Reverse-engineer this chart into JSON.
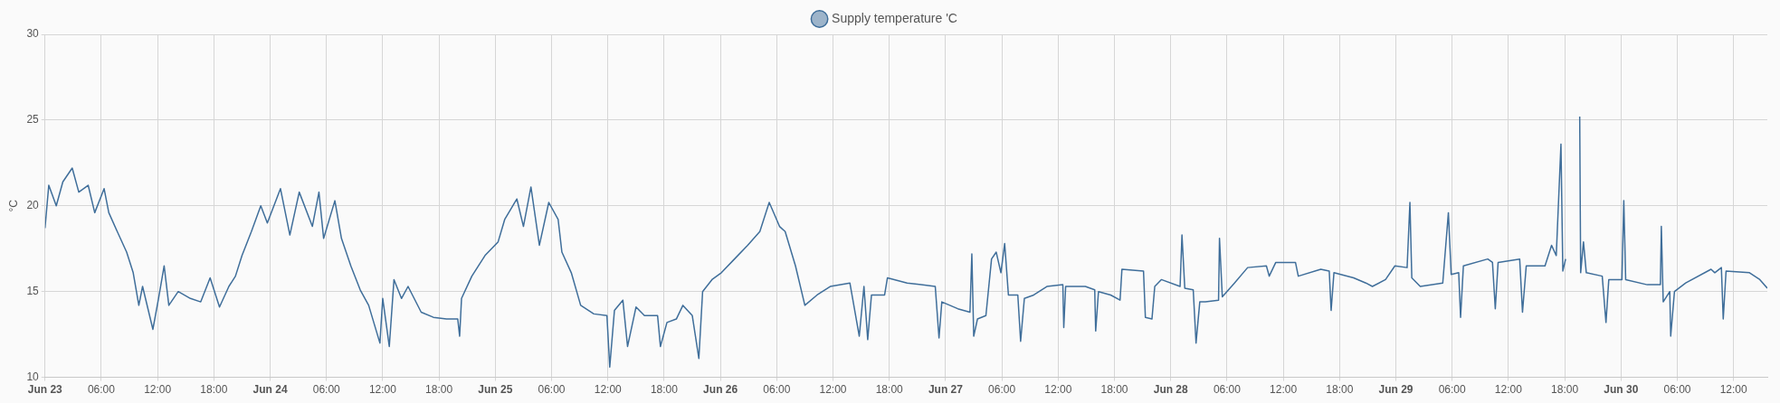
{
  "chart_data": {
    "type": "line",
    "ylabel": "°C",
    "legend": "top",
    "grid": true,
    "marker": "none",
    "line_style": "solid",
    "xlim": [
      "--06-23T00:00",
      "--06-30T15:36"
    ],
    "ylim": [
      10,
      30
    ],
    "yticks": [
      10,
      15,
      20,
      25,
      30
    ],
    "xticks": [
      {
        "value": "--06-23T00:00",
        "label": "Jun 23"
      },
      {
        "value": "--06-23T06:00",
        "label": "06:00"
      },
      {
        "value": "--06-23T12:00",
        "label": "12:00"
      },
      {
        "value": "--06-23T18:00",
        "label": "18:00"
      },
      {
        "value": "--06-24T00:00",
        "label": "Jun 24"
      },
      {
        "value": "--06-24T06:00",
        "label": "06:00"
      },
      {
        "value": "--06-24T12:00",
        "label": "12:00"
      },
      {
        "value": "--06-24T18:00",
        "label": "18:00"
      },
      {
        "value": "--06-25T00:00",
        "label": "Jun 25"
      },
      {
        "value": "--06-25T06:00",
        "label": "06:00"
      },
      {
        "value": "--06-25T12:00",
        "label": "12:00"
      },
      {
        "value": "--06-25T18:00",
        "label": "18:00"
      },
      {
        "value": "--06-26T00:00",
        "label": "Jun 26"
      },
      {
        "value": "--06-26T06:00",
        "label": "06:00"
      },
      {
        "value": "--06-26T12:00",
        "label": "12:00"
      },
      {
        "value": "--06-26T18:00",
        "label": "18:00"
      },
      {
        "value": "--06-27T00:00",
        "label": "Jun 27"
      },
      {
        "value": "--06-27T06:00",
        "label": "06:00"
      },
      {
        "value": "--06-27T12:00",
        "label": "12:00"
      },
      {
        "value": "--06-27T18:00",
        "label": "18:00"
      },
      {
        "value": "--06-28T00:00",
        "label": "Jun 28"
      },
      {
        "value": "--06-28T06:00",
        "label": "06:00"
      },
      {
        "value": "--06-28T12:00",
        "label": "12:00"
      },
      {
        "value": "--06-28T18:00",
        "label": "18:00"
      },
      {
        "value": "--06-29T00:00",
        "label": "Jun 29"
      },
      {
        "value": "--06-29T06:00",
        "label": "06:00"
      },
      {
        "value": "--06-29T12:00",
        "label": "12:00"
      },
      {
        "value": "--06-29T18:00",
        "label": "18:00"
      },
      {
        "value": "--06-30T00:00",
        "label": "Jun 30"
      },
      {
        "value": "--06-30T06:00",
        "label": "06:00"
      },
      {
        "value": "--06-30T12:00",
        "label": "12:00"
      }
    ],
    "series": [
      {
        "name": "Supply temperature 'C",
        "color": "#3f6e9a",
        "x": [
          "--06-23T00:00",
          "--06-23T00:24",
          "--06-23T01:12",
          "--06-23T01:54",
          "--06-23T02:54",
          "--06-23T03:36",
          "--06-23T04:36",
          "--06-23T05:18",
          "--06-23T06:18",
          "--06-23T06:48",
          "--06-23T07:42",
          "--06-23T08:42",
          "--06-23T09:24",
          "--06-23T10:00",
          "--06-23T10:24",
          "--06-23T11:30",
          "--06-23T12:06",
          "--06-23T12:42",
          "--06-23T13:12",
          "--06-23T14:12",
          "--06-23T15:30",
          "--06-23T16:36",
          "--06-23T17:36",
          "--06-23T18:36",
          "--06-23T19:36",
          "--06-23T20:18",
          "--06-23T21:00",
          "--06-23T22:00",
          "--06-23T23:00",
          "--06-23T23:42",
          "--06-24T01:06",
          "--06-24T02:06",
          "--06-24T03:06",
          "--06-24T04:30",
          "--06-24T05:12",
          "--06-24T05:42",
          "--06-24T06:54",
          "--06-24T07:36",
          "--06-24T08:36",
          "--06-24T09:36",
          "--06-24T10:30",
          "--06-24T11:42",
          "--06-24T12:00",
          "--06-24T12:42",
          "--06-24T13:12",
          "--06-24T14:00",
          "--06-24T14:42",
          "--06-24T16:06",
          "--06-24T17:24",
          "--06-24T18:48",
          "--06-24T20:00",
          "--06-24T20:12",
          "--06-24T20:24",
          "--06-24T21:30",
          "--06-24T22:54",
          "--06-25T00:18",
          "--06-25T01:00",
          "--06-25T02:18",
          "--06-25T03:00",
          "--06-25T03:48",
          "--06-25T04:42",
          "--06-25T05:42",
          "--06-25T06:42",
          "--06-25T07:06",
          "--06-25T08:06",
          "--06-25T09:06",
          "--06-25T10:30",
          "--06-25T11:54",
          "--06-25T12:12",
          "--06-25T12:42",
          "--06-25T13:36",
          "--06-25T14:06",
          "--06-25T15:00",
          "--06-25T15:54",
          "--06-25T17:18",
          "--06-25T17:36",
          "--06-25T18:18",
          "--06-25T19:18",
          "--06-25T20:00",
          "--06-25T21:00",
          "--06-25T21:42",
          "--06-25T22:06",
          "--06-25T23:06",
          "--06-26T00:06",
          "--06-26T01:30",
          "--06-26T02:54",
          "--06-26T04:12",
          "--06-26T05:12",
          "--06-26T06:18",
          "--06-26T06:54",
          "--06-26T08:00",
          "--06-26T09:00",
          "--06-26T10:18",
          "--06-26T11:42",
          "--06-26T13:48",
          "--06-26T14:48",
          "--06-26T15:18",
          "--06-26T15:42",
          "--06-26T16:06",
          "--06-26T17:30",
          "--06-26T17:48",
          "--06-26T19:54",
          "--06-26T22:54",
          "--06-26T23:18",
          "--06-26T23:36",
          "--06-27T01:18",
          "--06-27T02:36",
          "--06-27T02:48",
          "--06-27T03:00",
          "--06-27T03:24",
          "--06-27T04:18",
          "--06-27T04:54",
          "--06-27T05:24",
          "--06-27T05:54",
          "--06-27T06:18",
          "--06-27T06:42",
          "--06-27T07:42",
          "--06-27T08:00",
          "--06-27T08:24",
          "--06-27T09:24",
          "--06-27T10:48",
          "--06-27T12:30",
          "--06-27T12:36",
          "--06-27T12:48",
          "--06-27T14:54",
          "--06-27T15:54",
          "--06-27T16:00",
          "--06-27T16:18",
          "--06-27T17:36",
          "--06-27T18:36",
          "--06-27T18:48",
          "--06-27T21:06",
          "--06-27T21:18",
          "--06-27T22:00",
          "--06-27T22:18",
          "--06-27T23:00",
          "--06-28T01:00",
          "--06-28T01:12",
          "--06-28T01:30",
          "--06-28T02:24",
          "--06-28T02:42",
          "--06-28T03:06",
          "--06-28T03:42",
          "--06-28T05:06",
          "--06-28T05:12",
          "--06-28T05:30",
          "--06-28T06:48",
          "--06-28T08:12",
          "--06-28T10:12",
          "--06-28T10:30",
          "--06-28T11:12",
          "--06-28T13:18",
          "--06-28T13:36",
          "--06-28T16:00",
          "--06-28T16:54",
          "--06-28T17:06",
          "--06-28T17:24",
          "--06-28T19:30",
          "--06-28T20:48",
          "--06-28T21:30",
          "--06-28T22:54",
          "--06-28T23:54",
          "--06-29T01:12",
          "--06-29T01:30",
          "--06-29T01:42",
          "--06-29T02:36",
          "--06-29T05:00",
          "--06-29T05:36",
          "--06-29T05:54",
          "--06-29T06:42",
          "--06-29T06:54",
          "--06-29T07:12",
          "--06-29T09:48",
          "--06-29T10:18",
          "--06-29T10:36",
          "--06-29T10:54",
          "--06-29T13:12",
          "--06-29T13:30",
          "--06-29T13:54",
          "--06-29T15:54",
          "--06-29T16:36",
          "--06-29T17:06",
          "--06-29T17:36",
          "--06-29T17:48",
          "--06-29T18:06",
          "--06-29T18:48",
          "--06-29T19:36",
          "--06-29T19:42",
          "--06-29T20:00",
          "--06-29T20:18",
          "--06-29T22:00",
          "--06-29T22:24",
          "--06-29T22:42",
          "--06-30T00:06",
          "--06-30T00:18",
          "--06-30T00:30",
          "--06-30T02:48",
          "--06-30T04:12",
          "--06-30T04:18",
          "--06-30T04:30",
          "--06-30T05:12",
          "--06-30T05:18",
          "--06-30T05:42",
          "--06-30T06:54",
          "--06-30T09:36",
          "--06-30T10:00",
          "--06-30T10:42",
          "--06-30T10:54",
          "--06-30T11:12",
          "--06-30T13:42",
          "--06-30T14:48",
          "--06-30T15:36"
        ],
        "values": [
          18.7,
          21.2,
          20,
          21.4,
          22.2,
          20.8,
          21.2,
          19.6,
          21,
          19.6,
          18.5,
          17.3,
          16.1,
          14.2,
          15.3,
          12.8,
          14.6,
          16.5,
          14.2,
          15,
          14.6,
          14.4,
          15.8,
          14.1,
          15.3,
          15.9,
          17.1,
          18.5,
          20,
          19,
          21,
          18.3,
          20.8,
          18.8,
          20.8,
          18.1,
          20.3,
          18.1,
          16.5,
          15.1,
          14.2,
          12,
          14.6,
          11.8,
          15.7,
          14.6,
          15.3,
          13.8,
          13.5,
          13.4,
          13.4,
          12.4,
          14.6,
          15.9,
          17.1,
          17.9,
          19.2,
          20.4,
          18.8,
          21.1,
          17.7,
          20.2,
          19.2,
          17.3,
          16.1,
          14.2,
          13.7,
          13.6,
          10.6,
          13.9,
          14.5,
          11.8,
          14.1,
          13.6,
          13.6,
          11.8,
          13.2,
          13.4,
          14.2,
          13.6,
          11.1,
          15,
          15.7,
          16.1,
          16.9,
          17.7,
          18.5,
          20.2,
          18.8,
          18.5,
          16.5,
          14.2,
          14.8,
          15.3,
          15.5,
          12.4,
          15.3,
          12.2,
          14.8,
          14.8,
          15.8,
          15.5,
          15.3,
          12.3,
          14.4,
          14,
          13.8,
          17.2,
          12.4,
          13.4,
          13.6,
          16.9,
          17.3,
          16.1,
          17.8,
          14.8,
          14.8,
          12.1,
          14.6,
          14.8,
          15.3,
          15.4,
          12.9,
          15.3,
          15.3,
          15.1,
          12.7,
          15,
          14.8,
          14.5,
          16.3,
          16.2,
          13.5,
          13.4,
          15.3,
          15.7,
          15.3,
          18.3,
          15.2,
          15.1,
          12,
          14.4,
          14.4,
          14.5,
          18.1,
          14.7,
          15.5,
          16.4,
          16.5,
          15.9,
          16.7,
          16.7,
          15.9,
          16.3,
          16.2,
          13.9,
          16.1,
          15.8,
          15.5,
          15.3,
          15.7,
          16.5,
          16.4,
          20.2,
          15.8,
          15.3,
          15.5,
          19.6,
          16,
          16.1,
          13.5,
          16.5,
          16.9,
          16.7,
          14,
          16.7,
          16.9,
          13.8,
          16.5,
          16.5,
          17.7,
          17.1,
          23.6,
          16.2,
          16.9,
          null,
          25.2,
          16.1,
          17.9,
          16.1,
          15.9,
          13.2,
          15.7,
          15.7,
          20.3,
          15.7,
          15.4,
          15.4,
          18.8,
          14.4,
          15,
          12.4,
          15,
          15.5,
          16.3,
          16.1,
          16.4,
          13.4,
          16.2,
          16.1,
          15.7,
          15.2
        ]
      }
    ]
  }
}
